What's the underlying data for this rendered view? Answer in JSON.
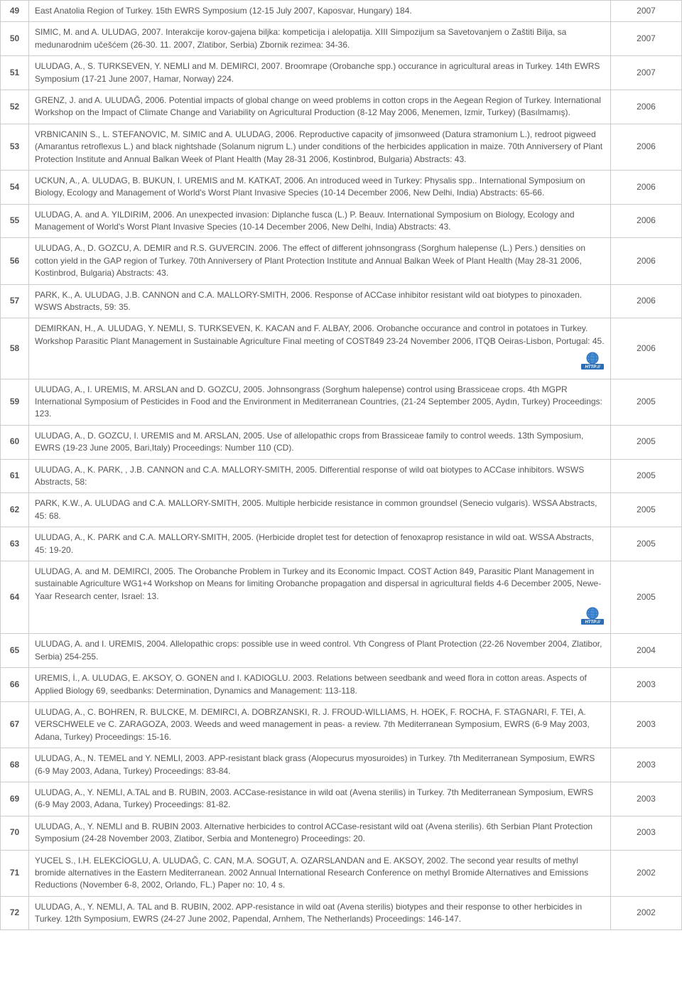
{
  "rows": [
    {
      "n": "49",
      "cite": "East Anatolia Region of Turkey. 15th EWRS Symposium (12-15 July 2007, Kaposvar, Hungary) 184.",
      "year": "2007",
      "link": false
    },
    {
      "n": "50",
      "cite": "SIMIC, M. and A. ULUDAG, 2007. Interakcije korov-gajena biljka: kompeticija i alelopatija. XIII Simpozijum sa Savetovanjem o Zaštiti Bilja, sa medunarodnim učešćem (26-30. 11. 2007, Zlatibor, Serbia) Zbornik rezimea: 34-36.",
      "year": "2007",
      "link": false
    },
    {
      "n": "51",
      "cite": "ULUDAG, A., S. TURKSEVEN, Y. NEMLI and M. DEMIRCI, 2007. Broomrape (Orobanche spp.) occurance in agricultural areas in Turkey. 14th EWRS Symposium (17-21 June 2007, Hamar, Norway) 224.",
      "year": "2007",
      "link": false
    },
    {
      "n": "52",
      "cite": "GRENZ, J. and A. ULUDAĞ, 2006. Potential impacts of global change on weed problems in cotton crops in the Aegean Region of Turkey. International Workshop on the Impact of Climate Change and Variability on Agricultural Production (8-12 May 2006, Menemen, Izmir, Turkey) (Basılmamış).",
      "year": "2006",
      "link": false
    },
    {
      "n": "53",
      "cite": "VRBNICANIN S., L. STEFANOVIC, M. SIMIC and A. ULUDAG, 2006. Reproductive capacity of jimsonweed (Datura stramonium L.), redroot pigweed (Amarantus retroflexus L.) and black nightshade (Solanum nigrum L.) under conditions of the herbicides application in maize. 70th Anniversery of Plant Protection Institute and Annual Balkan Week of Plant Health (May 28-31 2006, Kostinbrod, Bulgaria) Abstracts: 43.",
      "year": "2006",
      "link": false
    },
    {
      "n": "54",
      "cite": "UCKUN, A., A. ULUDAG, B. BUKUN, I. UREMIS and M. KATKAT, 2006. An introduced weed in Turkey: Physalis spp.. International Symposium on Biology, Ecology and Management of World's Worst Plant Invasive Species (10-14 December 2006, New Delhi, India) Abstracts: 65-66.",
      "year": "2006",
      "link": false
    },
    {
      "n": "55",
      "cite": "ULUDAG, A. and A. YILDIRIM, 2006. An unexpected invasion: Diplanche fusca (L.) P. Beauv. International Symposium on Biology, Ecology and Management of World's Worst Plant Invasive Species (10-14 December 2006, New Delhi, India) Abstracts: 43.",
      "year": "2006",
      "link": false
    },
    {
      "n": "56",
      "cite": "ULUDAG, A., D. GOZCU, A. DEMIR and R.S. GUVERCIN. 2006. The effect of different johnsongrass (Sorghum halepense (L.) Pers.) densities on cotton yield in the GAP region of Turkey. 70th Anniversery of Plant Protection Institute and Annual Balkan Week of Plant Health (May 28-31 2006, Kostinbrod, Bulgaria) Abstracts: 43.",
      "year": "2006",
      "link": false
    },
    {
      "n": "57",
      "cite": "PARK, K., A. ULUDAG, J.B. CANNON and C.A. MALLORY-SMITH, 2006. Response of ACCase inhibitor resistant wild oat biotypes to pinoxaden. WSWS Abstracts, 59: 35.",
      "year": "2006",
      "link": false
    },
    {
      "n": "58",
      "cite": "DEMIRKAN, H., A. ULUDAG, Y. NEMLI, S. TURKSEVEN, K. KACAN and F. ALBAY, 2006. Orobanche occurance and control in potatoes in Turkey. Workshop Parasitic Plant Management in Sustainable Agriculture Final meeting of COST849 23-24 November 2006, ITQB Oeiras-Lisbon, Portugal: 45.",
      "year": "2006",
      "link": true
    },
    {
      "n": "59",
      "cite": "ULUDAG, A., I. UREMIS, M. ARSLAN and D. GOZCU, 2005. Johnsongrass (Sorghum halepense) control using Brassiceae crops. 4th MGPR International Symposium of Pesticides in Food and the Environment in Mediterranean Countries, (21-24 September 2005, Aydın, Turkey) Proceedings: 123.",
      "year": "2005",
      "link": false
    },
    {
      "n": "60",
      "cite": "ULUDAG, A., D. GOZCU, I. UREMIS and M. ARSLAN, 2005. Use of allelopathic crops from Brassiceae family to control weeds. 13th Symposium, EWRS (19-23 June 2005, Bari,Italy) Proceedings: Number 110 (CD).",
      "year": "2005",
      "link": false
    },
    {
      "n": "61",
      "cite": "ULUDAG, A., K. PARK, , J.B. CANNON and C.A. MALLORY-SMITH, 2005. Differential response of wild oat biotypes to ACCase inhibitors. WSWS Abstracts, 58:",
      "year": "2005",
      "link": false
    },
    {
      "n": "62",
      "cite": "PARK, K.W., A. ULUDAG and C.A. MALLORY-SMITH, 2005. Multiple herbicide resistance in common groundsel (Senecio vulgaris). WSSA Abstracts, 45: 68.",
      "year": "2005",
      "link": false
    },
    {
      "n": "63",
      "cite": "ULUDAG, A., K. PARK and C.A. MALLORY-SMITH, 2005. (Herbicide droplet test for detection of fenoxaprop resistance in wild oat. WSSA Abstracts, 45: 19-20.",
      "year": "2005",
      "link": false
    },
    {
      "n": "64",
      "cite": "ULUDAG, A. and M. DEMIRCI, 2005. The Orobanche Problem in Turkey and its Economic Impact. COST Action 849, Parasitic Plant Management in sustainable Agriculture WG1+4 Workshop on Means for limiting Orobanche propagation and dispersal in agricultural fields 4-6 December 2005, Newe-Yaar Research center, Israel: 13.",
      "year": "2005",
      "link": true
    },
    {
      "n": "65",
      "cite": "ULUDAG, A. and I. UREMIS, 2004. Allelopathic crops: possible use in weed control. Vth Congress of Plant Protection (22-26 November 2004, Zlatibor, Serbia) 254-255.",
      "year": "2004",
      "link": false
    },
    {
      "n": "66",
      "cite": "UREMIS, İ., A. ULUDAG, E. AKSOY, O. GONEN and I. KADIOGLU. 2003. Relations between seedbank and weed flora in cotton areas. Aspects of Applied Biology 69, seedbanks: Determination, Dynamics and Management: 113-118.",
      "year": "2003",
      "link": false
    },
    {
      "n": "67",
      "cite": "ULUDAG, A., C. BOHREN, R. BULCKE, M. DEMIRCI, A. DOBRZANSKI, R. J. FROUD-WILLIAMS, H. HOEK, F. ROCHA, F. STAGNARI, F. TEI, A. VERSCHWELE ve C. ZARAGOZA, 2003. Weeds and weed management in peas- a review. 7th Mediterranean Symposium, EWRS (6-9 May 2003, Adana, Turkey) Proceedings: 15-16.",
      "year": "2003",
      "link": false
    },
    {
      "n": "68",
      "cite": "ULUDAG, A., N. TEMEL and Y. NEMLI, 2003. APP-resistant black grass (Alopecurus myosuroides) in Turkey. 7th Mediterranean Symposium, EWRS (6-9 May 2003, Adana, Turkey) Proceedings: 83-84.",
      "year": "2003",
      "link": false
    },
    {
      "n": "69",
      "cite": "ULUDAG, A., Y. NEMLI, A.TAL and B. RUBIN, 2003. ACCase-resistance in wild oat (Avena sterilis) in Turkey. 7th Mediterranean Symposium, EWRS (6-9 May 2003, Adana, Turkey) Proceedings: 81-82.",
      "year": "2003",
      "link": false
    },
    {
      "n": "70",
      "cite": "ULUDAG, A., Y. NEMLI and B. RUBIN 2003. Alternative herbicides to control ACCase-resistant wild oat (Avena sterilis). 6th Serbian Plant Protection Symposium (24-28 November 2003, Zlatibor, Serbia and Montenegro) Proceedings: 20.",
      "year": "2003",
      "link": false
    },
    {
      "n": "71",
      "cite": "YUCEL S., I.H. ELEKCİOGLU, A. ULUDAĞ, C. CAN, M.A. SOGUT, A. OZARSLANDAN and E. AKSOY, 2002. The second year results of methyl bromide alternatives in the Eastern Mediterranean. 2002 Annual International Research Conference on methyl Bromide Alternatives and Emissions Reductions (November 6-8, 2002, Orlando, FL.) Paper no: 10, 4 s.",
      "year": "2002",
      "link": false
    },
    {
      "n": "72",
      "cite": "ULUDAG, A., Y. NEMLI, A. TAL and B. RUBIN, 2002. APP-resistance in wild oat (Avena sterilis) biotypes and their response to other herbicides in Turkey. 12th Symposium, EWRS (24-27 June 2002, Papendal, Arnhem, The Netherlands) Proceedings: 146-147.",
      "year": "2002",
      "link": false
    }
  ],
  "icon": {
    "globe_fill": "#4a90d9",
    "globe_stroke": "#2d6db3",
    "label_bg": "#2d6db3",
    "label_text": "HTTP://",
    "label_text_color": "#ffffff"
  }
}
